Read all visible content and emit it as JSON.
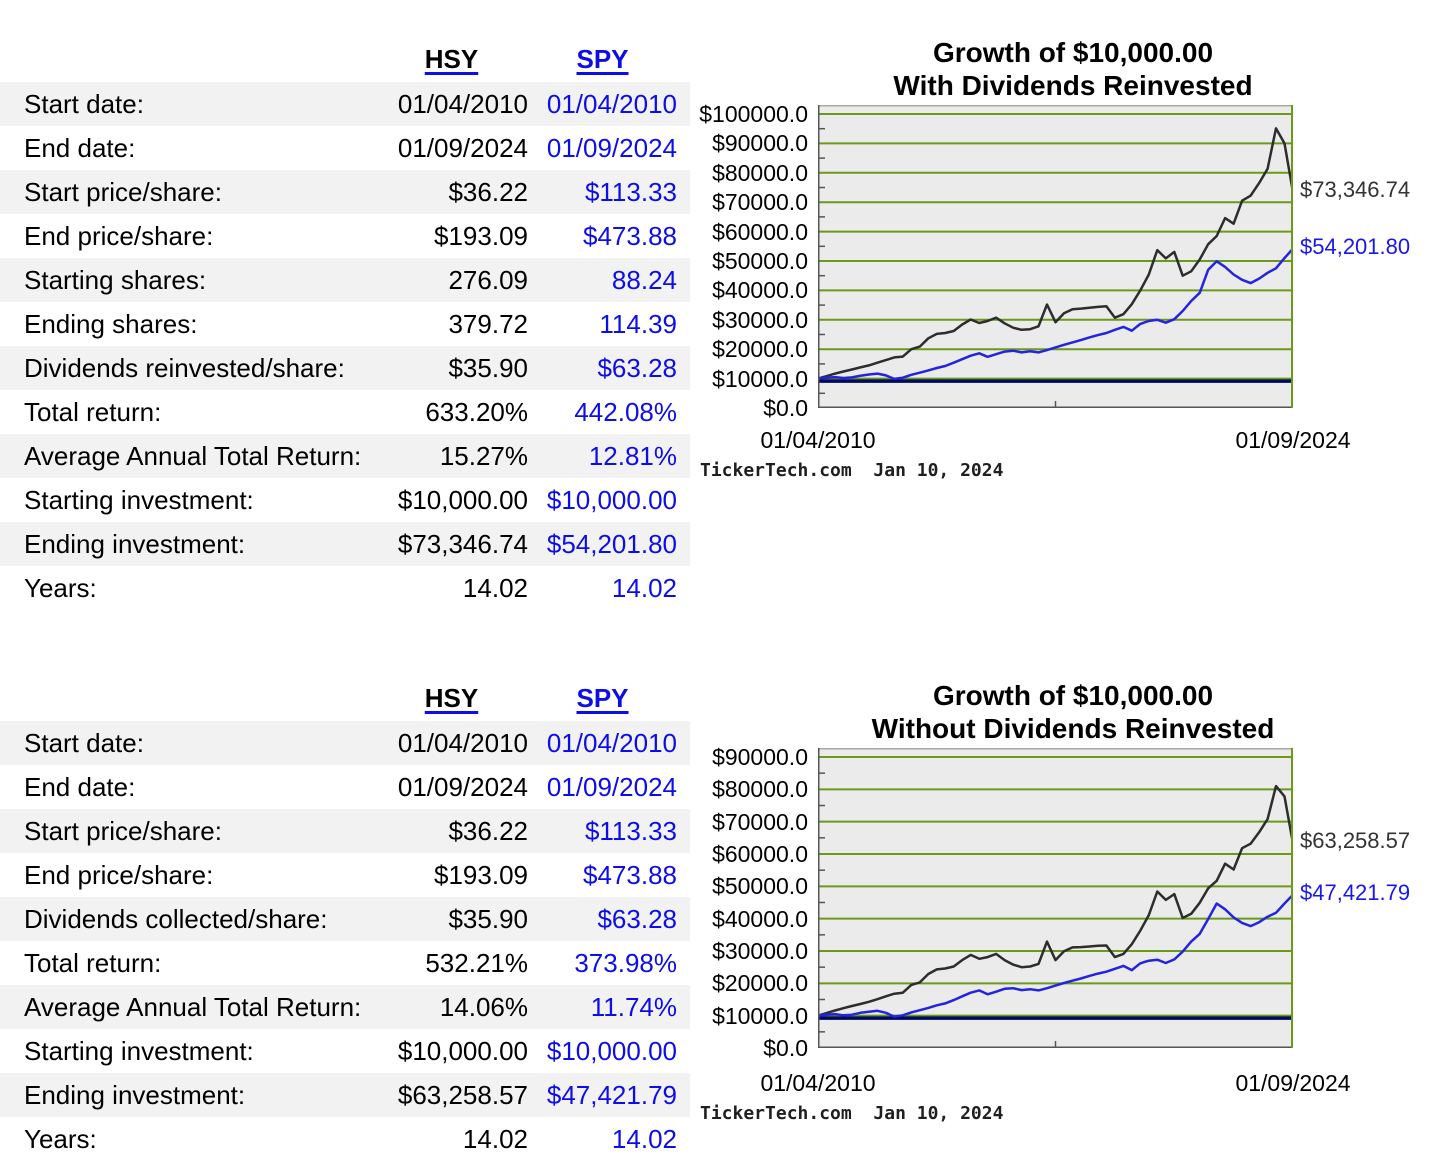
{
  "tables": [
    {
      "columns": [
        "HSY",
        "SPY"
      ],
      "rows": [
        {
          "label": "Start date:",
          "hsy": "01/04/2010",
          "spy": "01/04/2010"
        },
        {
          "label": "End date:",
          "hsy": "01/09/2024",
          "spy": "01/09/2024"
        },
        {
          "label": "Start price/share:",
          "hsy": "$36.22",
          "spy": "$113.33"
        },
        {
          "label": "End price/share:",
          "hsy": "$193.09",
          "spy": "$473.88"
        },
        {
          "label": "Starting shares:",
          "hsy": "276.09",
          "spy": "88.24"
        },
        {
          "label": "Ending shares:",
          "hsy": "379.72",
          "spy": "114.39"
        },
        {
          "label": "Dividends reinvested/share:",
          "hsy": "$35.90",
          "spy": "$63.28"
        },
        {
          "label": "Total return:",
          "hsy": "633.20%",
          "spy": "442.08%"
        },
        {
          "label": "Average Annual Total Return:",
          "hsy": "15.27%",
          "spy": "12.81%"
        },
        {
          "label": "Starting investment:",
          "hsy": "$10,000.00",
          "spy": "$10,000.00"
        },
        {
          "label": "Ending investment:",
          "hsy": "$73,346.74",
          "spy": "$54,201.80"
        },
        {
          "label": "Years:",
          "hsy": "14.02",
          "spy": "14.02"
        }
      ]
    },
    {
      "columns": [
        "HSY",
        "SPY"
      ],
      "rows": [
        {
          "label": "Start date:",
          "hsy": "01/04/2010",
          "spy": "01/04/2010"
        },
        {
          "label": "End date:",
          "hsy": "01/09/2024",
          "spy": "01/09/2024"
        },
        {
          "label": "Start price/share:",
          "hsy": "$36.22",
          "spy": "$113.33"
        },
        {
          "label": "End price/share:",
          "hsy": "$193.09",
          "spy": "$473.88"
        },
        {
          "label": "Dividends collected/share:",
          "hsy": "$35.90",
          "spy": "$63.28"
        },
        {
          "label": "Total return:",
          "hsy": "532.21%",
          "spy": "373.98%"
        },
        {
          "label": "Average Annual Total Return:",
          "hsy": "14.06%",
          "spy": "11.74%"
        },
        {
          "label": "Starting investment:",
          "hsy": "$10,000.00",
          "spy": "$10,000.00"
        },
        {
          "label": "Ending investment:",
          "hsy": "$63,258.57",
          "spy": "$47,421.79"
        },
        {
          "label": "Years:",
          "hsy": "14.02",
          "spy": "14.02"
        }
      ]
    }
  ],
  "chart_data": [
    {
      "type": "line",
      "title": "Growth of $10,000.00",
      "subtitle": "With Dividends Reinvested",
      "xlabel": "",
      "ylabel": "",
      "ylim": [
        0,
        100000
      ],
      "y_tick_step": 10000,
      "grid": true,
      "x_tick_labels": [
        "01/04/2010",
        "01/09/2024"
      ],
      "footer": "TickerTech.com  Jan 10, 2024",
      "baseline": 10000,
      "bg": "#ebebeb",
      "grid_color": "#6b9a1b",
      "baseline_color": "#000a61",
      "end_labels": [
        {
          "text": "$73,346.74",
          "value": 73346.74,
          "color": "#333333"
        },
        {
          "text": "$54,201.80",
          "value": 54201.8,
          "color": "#1717ee"
        }
      ],
      "series": [
        {
          "name": "HSY",
          "color": "#2d2d2d",
          "values": [
            10000,
            10800,
            11700,
            12400,
            13100,
            13800,
            14500,
            15400,
            16300,
            17200,
            17500,
            20000,
            20900,
            23700,
            25200,
            25500,
            26200,
            28400,
            30100,
            28900,
            29600,
            30700,
            28800,
            27300,
            26600,
            26800,
            27800,
            35200,
            29200,
            32200,
            33600,
            33800,
            34100,
            34400,
            34600,
            30700,
            31900,
            35300,
            40000,
            45400,
            53700,
            50900,
            53100,
            45000,
            46500,
            50500,
            55700,
            58500,
            64600,
            62700,
            70500,
            72200,
            76500,
            81400,
            95100,
            90000,
            73346.74
          ]
        },
        {
          "name": "SPY",
          "color": "#2424e0",
          "values": [
            10000,
            10300,
            10500,
            10200,
            10400,
            11000,
            11400,
            11700,
            11100,
            9900,
            10300,
            11300,
            12000,
            12800,
            13600,
            14300,
            15400,
            16600,
            17800,
            18600,
            17400,
            18300,
            19200,
            19500,
            18900,
            19300,
            18900,
            19700,
            20600,
            21500,
            22300,
            23100,
            24000,
            24800,
            25500,
            26600,
            27600,
            26300,
            28600,
            29600,
            30000,
            29000,
            30200,
            33000,
            36400,
            39200,
            47000,
            49900,
            48000,
            45400,
            43600,
            42500,
            44000,
            46000,
            47500,
            51000,
            54201.8
          ]
        }
      ]
    },
    {
      "type": "line",
      "title": "Growth of $10,000.00",
      "subtitle": "Without Dividends Reinvested",
      "xlabel": "",
      "ylabel": "",
      "ylim": [
        0,
        90000
      ],
      "y_tick_step": 10000,
      "grid": true,
      "x_tick_labels": [
        "01/04/2010",
        "01/09/2024"
      ],
      "footer": "TickerTech.com  Jan 10, 2024",
      "baseline": 10000,
      "bg": "#ebebeb",
      "grid_color": "#6b9a1b",
      "baseline_color": "#000a61",
      "end_labels": [
        {
          "text": "$63,258.57",
          "value": 63258.57,
          "color": "#333333"
        },
        {
          "text": "$47,421.79",
          "value": 47421.79,
          "color": "#1717ee"
        }
      ],
      "series": [
        {
          "name": "HSY",
          "color": "#2d2d2d",
          "values": [
            10000,
            10800,
            11600,
            12300,
            13000,
            13600,
            14300,
            15100,
            16000,
            16800,
            17100,
            19500,
            20300,
            22900,
            24300,
            24600,
            25200,
            27200,
            28800,
            27600,
            28100,
            29100,
            27200,
            25800,
            25000,
            25200,
            26000,
            32900,
            27200,
            29900,
            31100,
            31200,
            31400,
            31600,
            31700,
            28100,
            29100,
            32100,
            36300,
            41100,
            48400,
            45800,
            47600,
            40200,
            41500,
            44900,
            49400,
            51700,
            57000,
            55200,
            61800,
            63200,
            66700,
            70800,
            81000,
            77800,
            63258.57
          ]
        },
        {
          "name": "SPY",
          "color": "#2424e0",
          "values": [
            10000,
            10300,
            10500,
            10100,
            10300,
            10900,
            11200,
            11500,
            10900,
            9700,
            10100,
            11000,
            11700,
            12400,
            13200,
            13800,
            14800,
            16000,
            17100,
            17800,
            16600,
            17400,
            18300,
            18500,
            17900,
            18200,
            17800,
            18500,
            19300,
            20100,
            20800,
            21500,
            22300,
            23000,
            23600,
            24500,
            25400,
            24100,
            26200,
            27000,
            27300,
            26300,
            27400,
            29800,
            32900,
            35300,
            39900,
            44700,
            42900,
            40400,
            38700,
            37700,
            38900,
            40600,
            41800,
            44700,
            47421.79
          ]
        }
      ]
    }
  ]
}
